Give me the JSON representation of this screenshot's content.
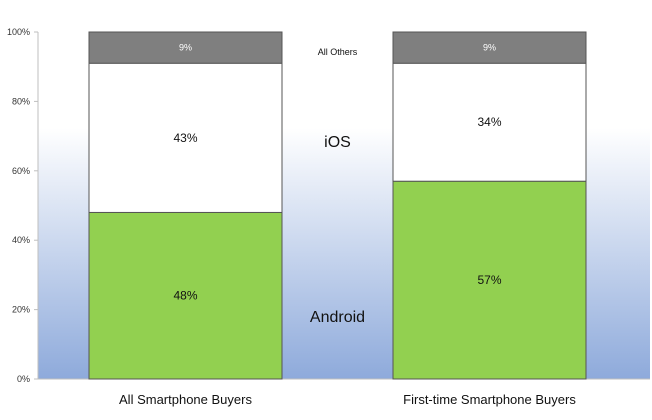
{
  "chart_data": {
    "type": "bar",
    "stacked": true,
    "title": "",
    "xlabel": "",
    "ylabel": "",
    "ylim": [
      0,
      100
    ],
    "yticks": [
      "0%",
      "20%",
      "40%",
      "60%",
      "80%",
      "100%"
    ],
    "grid": false,
    "legend": "inline labels between bars",
    "categories": [
      "All Smartphone Buyers",
      "First-time Smartphone Buyers"
    ],
    "series": [
      {
        "name": "Android",
        "values": [
          48,
          57
        ],
        "labels": [
          "48%",
          "57%"
        ],
        "color": "#92d050"
      },
      {
        "name": "iOS",
        "values": [
          43,
          34
        ],
        "labels": [
          "43%",
          "34%"
        ],
        "color": "#ffffff"
      },
      {
        "name": "All Others",
        "values": [
          9,
          9
        ],
        "labels": [
          "9%",
          "9%"
        ],
        "color": "#7f7f7f"
      }
    ],
    "background_gradient": [
      "#ffffff",
      "#8eaadb"
    ]
  }
}
